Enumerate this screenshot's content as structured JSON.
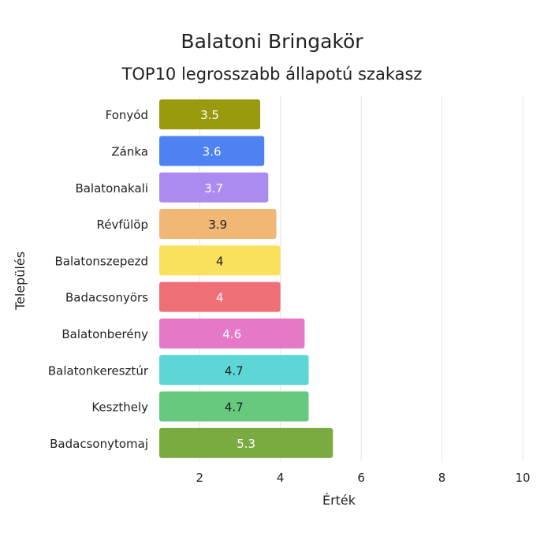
{
  "chart_data": {
    "type": "bar",
    "orientation": "horizontal",
    "title": "Balatoni Bringakör",
    "subtitle": "TOP10 legrosszabb állapotú szakasz",
    "xlabel": "Érték",
    "ylabel": "Település",
    "xlim": [
      1,
      10
    ],
    "xticks": [
      2,
      4,
      6,
      8,
      10
    ],
    "grid": true,
    "categories": [
      "Fonyód",
      "Zánka",
      "Balatonakali",
      "Révfülöp",
      "Balatonszepezd",
      "Badacsonyörs",
      "Balatonberény",
      "Balatonkeresztúr",
      "Keszthely",
      "Badacsonytomaj"
    ],
    "values": [
      3.5,
      3.6,
      3.7,
      3.9,
      4,
      4,
      4.6,
      4.7,
      4.7,
      5.3
    ],
    "colors": [
      "#9a9a0f",
      "#4e82f2",
      "#ab8bf0",
      "#f0b874",
      "#fbe05d",
      "#ef6f77",
      "#e678c8",
      "#5dd6d6",
      "#66c97d",
      "#7aab41"
    ],
    "label_colors": [
      "#ffffff",
      "#ffffff",
      "#ffffff",
      "#222222",
      "#222222",
      "#ffffff",
      "#ffffff",
      "#222222",
      "#222222",
      "#ffffff"
    ]
  }
}
